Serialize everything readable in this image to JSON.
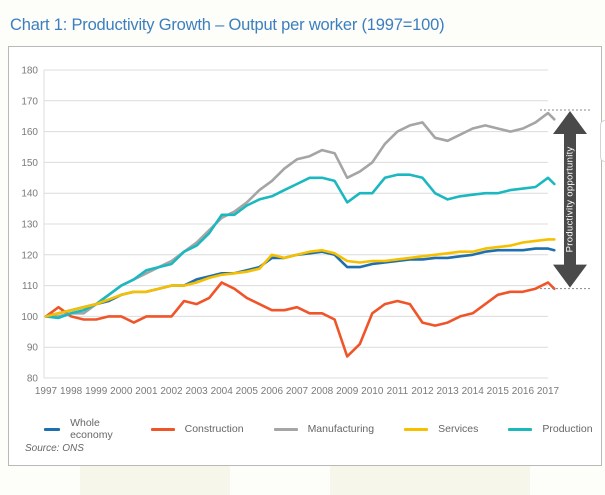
{
  "title": "Chart 1: Productivity Growth – Output per worker (1997=100)",
  "source": "Source: ONS",
  "annotation": {
    "label": "Productivity opportunity",
    "from_value": 109,
    "to_value": 167
  },
  "chart_data": {
    "type": "line",
    "title": "Chart 1: Productivity Growth – Output per worker (1997=100)",
    "xlabel": "",
    "ylabel": "",
    "ylim": [
      80,
      180
    ],
    "xlim": [
      1997,
      2017.3
    ],
    "grid": true,
    "legend": "bottom",
    "yticks": [
      "80",
      "90",
      "100",
      "110",
      "120",
      "130",
      "140",
      "150",
      "160",
      "170",
      "180"
    ],
    "xticks": [
      "1997",
      "1998",
      "1999",
      "2000",
      "2001",
      "2002",
      "2003",
      "2004",
      "2005",
      "2006",
      "2007",
      "2008",
      "2009",
      "2010",
      "2011",
      "2012",
      "2013",
      "2014",
      "2015",
      "2016",
      "2017"
    ],
    "x": [
      1997,
      1997.5,
      1998,
      1998.5,
      1999,
      1999.5,
      2000,
      2000.5,
      2001,
      2001.5,
      2002,
      2002.5,
      2003,
      2003.5,
      2004,
      2004.5,
      2005,
      2005.5,
      2006,
      2006.5,
      2007,
      2007.5,
      2008,
      2008.5,
      2009,
      2009.5,
      2010,
      2010.5,
      2011,
      2011.5,
      2012,
      2012.5,
      2013,
      2013.5,
      2014,
      2014.5,
      2015,
      2015.5,
      2016,
      2016.5,
      2017,
      2017.25
    ],
    "series": [
      {
        "name": "Whole economy",
        "color": "#1f6fae",
        "values": [
          100,
          101,
          102,
          103,
          104,
          105,
          107,
          108,
          108,
          109,
          110,
          110,
          112,
          113,
          114,
          114,
          115,
          116,
          119,
          119,
          120,
          120.5,
          121,
          120,
          116,
          116,
          117,
          117.5,
          118,
          118.5,
          118.5,
          119,
          119,
          119.5,
          120,
          121,
          121.5,
          121.5,
          121.5,
          122,
          122,
          121.5
        ]
      },
      {
        "name": "Construction",
        "color": "#f0552a",
        "values": [
          100,
          103,
          100,
          99,
          99,
          100,
          100,
          98,
          100,
          100,
          100,
          105,
          104,
          106,
          111,
          109,
          106,
          104,
          102,
          102,
          103,
          101,
          101,
          99,
          87,
          91,
          101,
          104,
          105,
          104,
          98,
          97,
          98,
          100,
          101,
          104,
          107,
          108,
          108,
          109,
          111,
          109
        ]
      },
      {
        "name": "Manufacturing",
        "color": "#a5a5a5",
        "values": [
          100,
          100,
          101,
          101,
          104,
          107,
          110,
          112,
          114,
          116,
          118,
          121,
          124,
          128,
          132,
          134,
          137,
          141,
          144,
          148,
          151,
          152,
          154,
          153,
          145,
          147,
          150,
          156,
          160,
          162,
          163,
          158,
          157,
          159,
          161,
          162,
          161,
          160,
          161,
          163,
          166,
          164
        ]
      },
      {
        "name": "Services",
        "color": "#f6c000",
        "values": [
          100,
          101,
          102,
          103,
          104,
          105.5,
          107,
          108,
          108,
          109,
          110,
          110,
          111,
          112.5,
          113.5,
          114,
          114.5,
          115.5,
          120,
          119,
          120,
          121,
          121.5,
          120.5,
          118,
          117.5,
          118,
          118,
          118.5,
          119,
          119.5,
          120,
          120.5,
          121,
          121,
          122,
          122.5,
          123,
          124,
          124.5,
          125,
          125
        ]
      },
      {
        "name": "Production",
        "color": "#1cb8c0",
        "values": [
          100,
          99.5,
          101,
          102,
          104,
          107,
          110,
          112,
          115,
          116,
          117,
          121,
          123,
          127,
          133,
          133,
          136,
          138,
          139,
          141,
          143,
          145,
          145,
          144,
          137,
          140,
          140,
          145,
          146,
          146,
          145,
          140,
          138,
          139,
          139.5,
          140,
          140,
          141,
          141.5,
          142,
          145,
          143
        ]
      }
    ]
  }
}
